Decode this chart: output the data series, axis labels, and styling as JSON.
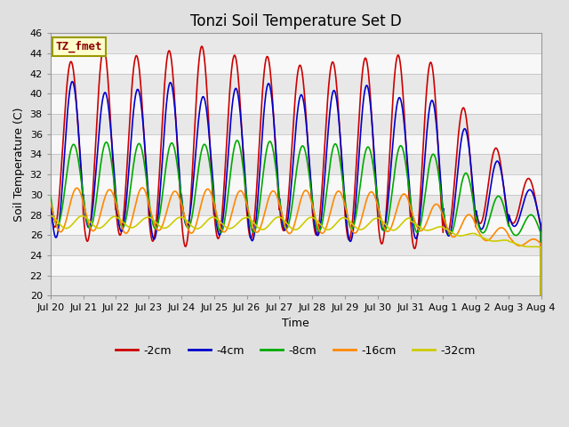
{
  "title": "Tonzi Soil Temperature Set D",
  "xlabel": "Time",
  "ylabel": "Soil Temperature (C)",
  "ylim": [
    20,
    46
  ],
  "annotation_text": "TZ_fmet",
  "series_labels": [
    "-2cm",
    "-4cm",
    "-8cm",
    "-16cm",
    "-32cm"
  ],
  "series_colors": [
    "#cc0000",
    "#0000cc",
    "#00aa00",
    "#ff8800",
    "#cccc00"
  ],
  "series_linewidths": [
    1.2,
    1.2,
    1.2,
    1.2,
    1.2
  ],
  "xtick_labels": [
    "Jul 20",
    "Jul 21",
    "Jul 22",
    "Jul 23",
    "Jul 24",
    "Jul 25",
    "Jul 26",
    "Jul 27",
    "Jul 28",
    "Jul 29",
    "Jul 30",
    "Jul 31",
    "Aug 1",
    "Aug 2",
    "Aug 3",
    "Aug 4"
  ],
  "n_days": 15,
  "samples_per_day": 96,
  "background_color": "#e0e0e0",
  "band_light": "#f0f0f0",
  "band_dark": "#d8d8d8",
  "title_fontsize": 12,
  "axis_label_fontsize": 9,
  "tick_label_fontsize": 8,
  "legend_fontsize": 9
}
